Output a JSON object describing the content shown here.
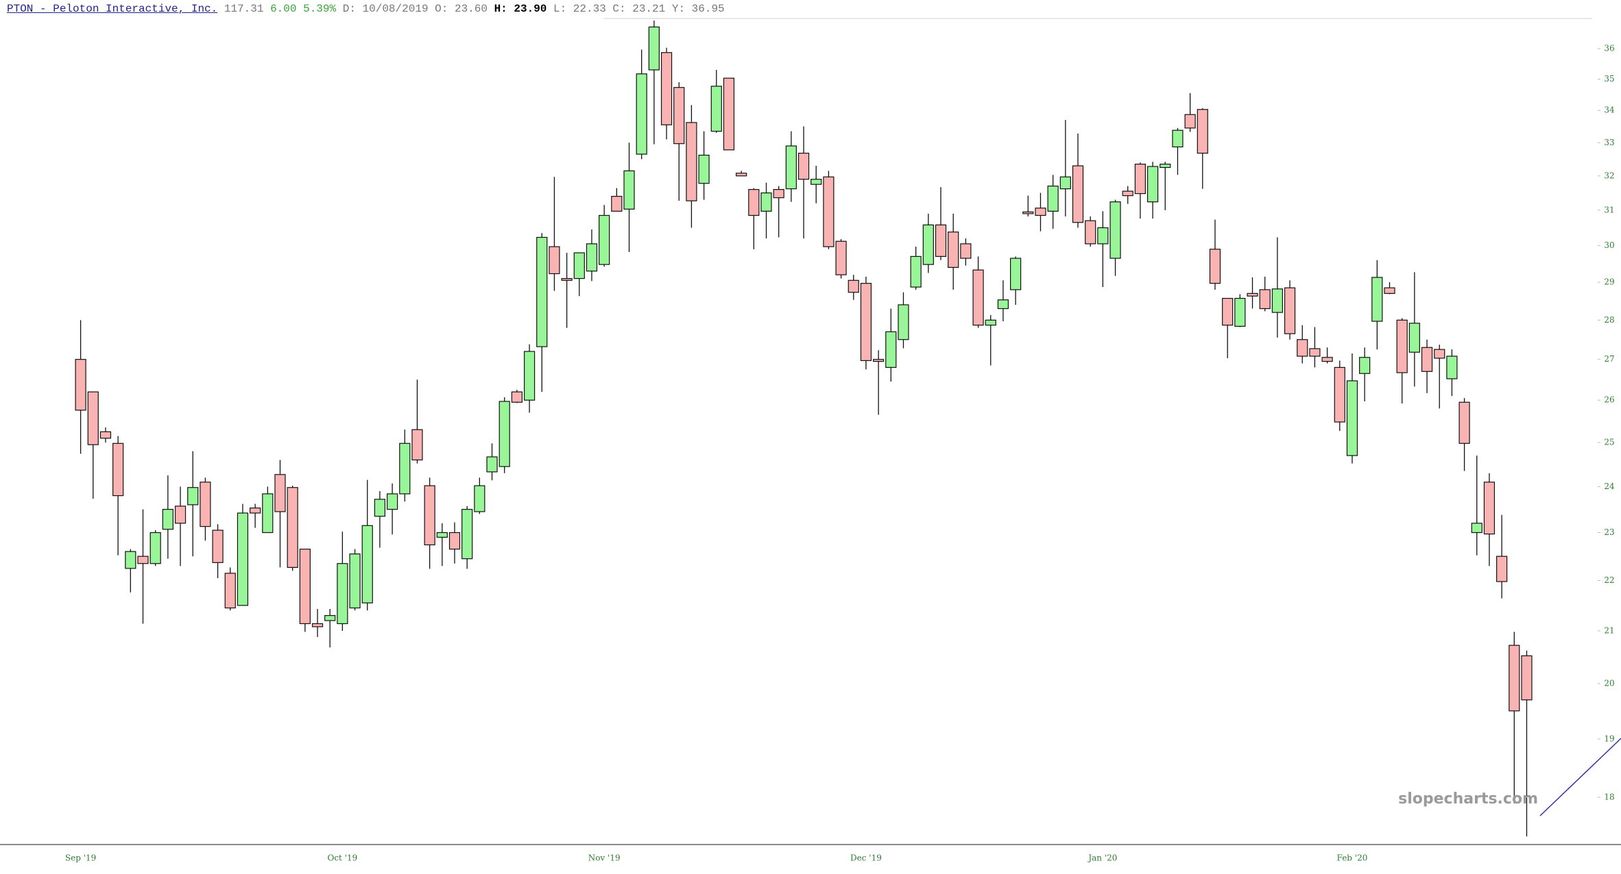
{
  "header": {
    "symbol": "PTON - Peloton Interactive, Inc.",
    "last": "117.31",
    "change": "6.00",
    "change_pct": "5.39%",
    "date": "D: 10/08/2019",
    "open": "O: 23.60",
    "high": "H: 23.90",
    "low": "L: 22.33",
    "close": "C: 23.21",
    "year_high": "Y: 36.95"
  },
  "chart_data": {
    "type": "candlestick",
    "log_scale": true,
    "up_color": "#98f598",
    "down_color": "#f9b3b3",
    "watermark": "slopecharts.com",
    "categories": [
      "Sep '19",
      null,
      null,
      null,
      null,
      null,
      null,
      null,
      null,
      null,
      null,
      null,
      null,
      null,
      null,
      null,
      null,
      null,
      null,
      null,
      null,
      "Oct '19",
      null,
      null,
      null,
      null,
      null,
      null,
      null,
      null,
      null,
      null,
      null,
      null,
      null,
      null,
      null,
      null,
      null,
      null,
      null,
      null,
      "Nov '19",
      null,
      null,
      null,
      null,
      null,
      null,
      null,
      null,
      null,
      null,
      null,
      null,
      null,
      null,
      null,
      null,
      null,
      null,
      null,
      null,
      "Dec '19",
      null,
      null,
      null,
      null,
      null,
      null,
      null,
      null,
      null,
      null,
      null,
      null,
      null,
      null,
      null,
      null,
      null,
      null,
      "Jan '20",
      null,
      null,
      null,
      null,
      null,
      null,
      null,
      null,
      null,
      null,
      null,
      null,
      null,
      null,
      null,
      null,
      null,
      null,
      null,
      "Feb '20",
      null,
      null,
      null,
      null,
      null,
      null,
      null,
      null,
      null,
      null,
      null,
      null,
      null,
      null
    ],
    "open": [
      27.0,
      26.2,
      25.25,
      24.98,
      22.25,
      22.5,
      22.35,
      23.07,
      23.57,
      23.6,
      24.1,
      23.05,
      22.15,
      21.5,
      23.53,
      23.0,
      24.27,
      23.98,
      22.65,
      21.14,
      21.2,
      21.14,
      21.45,
      21.55,
      23.35,
      23.5,
      23.84,
      25.3,
      24.02,
      22.9,
      23.0,
      22.45,
      23.45,
      24.33,
      24.45,
      26.2,
      26.0,
      27.32,
      29.97,
      29.1,
      29.1,
      29.3,
      29.48,
      31.4,
      31.03,
      32.65,
      35.3,
      35.87,
      34.73,
      33.62,
      31.78,
      33.35,
      35.03,
      32.08,
      31.6,
      30.97,
      31.6,
      31.62,
      32.68,
      31.75,
      31.97,
      30.12,
      29.05,
      28.97,
      27.0,
      26.8,
      27.5,
      28.87,
      29.48,
      30.58,
      30.38,
      30.05,
      29.33,
      27.87,
      28.3,
      28.8,
      30.95,
      31.06,
      30.97,
      31.62,
      32.3,
      30.7,
      30.05,
      29.65,
      31.55,
      32.35,
      31.24,
      32.25,
      32.87,
      33.87,
      34.03,
      29.9,
      28.57,
      27.84,
      28.7,
      28.8,
      28.2,
      28.85,
      27.5,
      27.27,
      27.05,
      26.8,
      24.7,
      26.65,
      27.97,
      28.85,
      28.0,
      27.18,
      27.3,
      27.25,
      26.52,
      25.95,
      23.0,
      24.1,
      22.5,
      20.72,
      20.52
    ],
    "high": [
      28.0,
      26.2,
      25.35,
      25.15,
      22.65,
      23.5,
      23.05,
      24.25,
      24.0,
      24.8,
      24.2,
      23.18,
      22.27,
      23.62,
      23.62,
      24.0,
      24.6,
      24.02,
      22.65,
      21.43,
      21.43,
      23.02,
      22.65,
      24.15,
      23.9,
      24.07,
      25.3,
      26.5,
      24.2,
      23.2,
      23.22,
      23.57,
      24.2,
      24.98,
      26.07,
      26.25,
      27.38,
      30.35,
      31.97,
      29.8,
      29.8,
      30.45,
      31.15,
      31.64,
      33.0,
      35.97,
      36.95,
      36.03,
      34.9,
      34.17,
      33.35,
      35.3,
      35.03,
      32.15,
      31.64,
      31.8,
      31.7,
      33.35,
      33.5,
      32.3,
      32.15,
      30.18,
      29.2,
      29.15,
      27.23,
      28.3,
      28.73,
      29.97,
      30.9,
      31.67,
      30.9,
      30.2,
      29.7,
      28.13,
      29.05,
      29.7,
      31.42,
      31.5,
      32.03,
      33.7,
      33.28,
      30.82,
      30.97,
      31.3,
      31.7,
      32.4,
      32.42,
      32.42,
      33.45,
      34.55,
      34.07,
      30.73,
      28.57,
      28.68,
      29.13,
      29.15,
      30.23,
      29.05,
      27.87,
      27.82,
      27.3,
      26.97,
      27.15,
      27.3,
      29.6,
      29.0,
      28.05,
      29.27,
      27.5,
      27.37,
      27.25,
      26.05,
      24.7,
      24.3,
      23.38,
      20.98,
      20.62
    ],
    "low": [
      24.74,
      23.73,
      25.0,
      22.52,
      21.76,
      21.14,
      22.3,
      22.45,
      22.3,
      22.5,
      22.83,
      22.05,
      21.4,
      21.5,
      23.1,
      23.0,
      22.27,
      22.2,
      20.98,
      20.88,
      20.68,
      21.0,
      21.4,
      21.4,
      22.68,
      22.96,
      23.67,
      24.52,
      22.24,
      22.3,
      22.35,
      22.24,
      23.4,
      24.14,
      24.3,
      25.93,
      25.7,
      26.2,
      28.77,
      27.8,
      28.63,
      29.03,
      29.42,
      30.97,
      29.82,
      32.5,
      32.95,
      33.1,
      31.27,
      30.5,
      31.3,
      33.3,
      32.78,
      32.0,
      29.9,
      30.2,
      30.23,
      31.24,
      30.2,
      31.2,
      29.9,
      29.1,
      28.53,
      26.75,
      25.65,
      26.45,
      27.28,
      28.8,
      29.25,
      29.6,
      28.8,
      29.45,
      27.8,
      26.85,
      27.97,
      28.4,
      30.82,
      30.4,
      30.47,
      30.82,
      30.5,
      29.97,
      28.87,
      29.17,
      31.18,
      30.76,
      30.76,
      31.0,
      32.03,
      33.33,
      31.62,
      28.8,
      27.03,
      27.82,
      28.3,
      28.23,
      27.55,
      27.5,
      26.9,
      26.8,
      26.9,
      25.27,
      24.52,
      25.97,
      27.25,
      28.68,
      25.92,
      26.33,
      26.17,
      25.8,
      26.1,
      24.35,
      22.52,
      22.3,
      21.64,
      17.9,
      17.36
    ],
    "close": [
      25.76,
      24.95,
      25.1,
      23.8,
      22.6,
      22.35,
      23.0,
      23.5,
      23.2,
      23.98,
      23.13,
      22.37,
      21.45,
      23.42,
      23.42,
      23.84,
      23.45,
      22.27,
      21.14,
      21.08,
      21.3,
      22.35,
      22.55,
      23.15,
      23.72,
      23.84,
      24.98,
      24.6,
      22.74,
      23.0,
      22.65,
      23.5,
      24.02,
      24.67,
      25.97,
      25.95,
      27.2,
      30.23,
      29.23,
      29.05,
      29.8,
      30.05,
      30.85,
      30.97,
      32.15,
      35.17,
      36.73,
      33.55,
      32.97,
      31.27,
      32.62,
      34.77,
      32.78,
      32.0,
      30.85,
      31.5,
      31.36,
      32.9,
      31.9,
      31.9,
      29.97,
      29.2,
      28.73,
      26.97,
      26.95,
      27.7,
      28.4,
      29.7,
      30.58,
      29.7,
      29.4,
      29.65,
      27.87,
      28.0,
      28.53,
      29.65,
      30.9,
      30.85,
      31.7,
      31.97,
      30.65,
      30.05,
      30.5,
      31.24,
      31.42,
      31.48,
      32.28,
      32.35,
      33.38,
      33.45,
      32.68,
      28.97,
      27.87,
      28.57,
      28.63,
      28.3,
      28.82,
      27.65,
      27.08,
      27.08,
      26.95,
      25.48,
      26.47,
      27.05,
      29.13,
      28.7,
      26.67,
      27.92,
      26.7,
      27.03,
      27.08,
      24.98,
      23.2,
      22.97,
      21.98,
      19.5,
      19.7
    ],
    "ylim": [
      17.23,
      37.02
    ],
    "yticks": [
      18,
      19,
      20,
      21,
      22,
      23,
      24,
      25,
      26,
      27,
      28,
      29,
      30,
      31,
      32,
      33,
      34,
      35,
      36
    ]
  }
}
